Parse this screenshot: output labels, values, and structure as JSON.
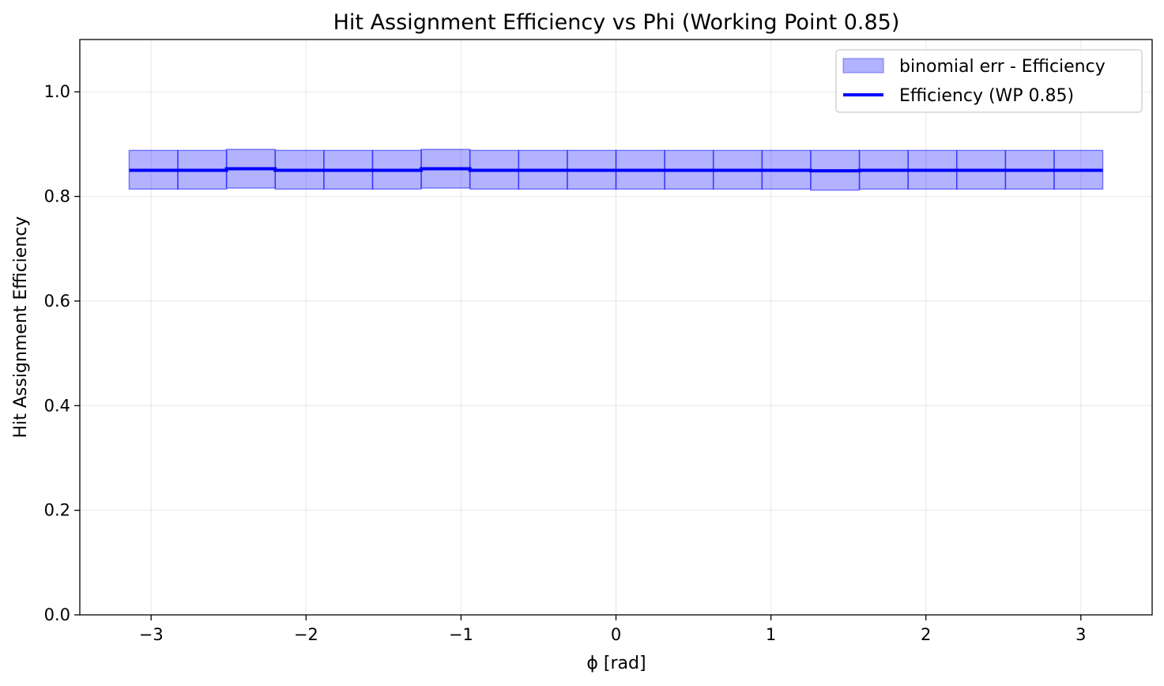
{
  "chart_data": {
    "type": "line",
    "title": "Hit Assignment Efficiency vs Phi (Working Point 0.85)",
    "xlabel": "ϕ [rad]",
    "ylabel": "Hit Assignment Efficiency",
    "xlim": [
      -3.46,
      3.46
    ],
    "ylim": [
      0.0,
      1.1
    ],
    "x_ticks": [
      {
        "value": -3,
        "label": "−3"
      },
      {
        "value": -2,
        "label": "−2"
      },
      {
        "value": -1,
        "label": "−1"
      },
      {
        "value": 0,
        "label": "0"
      },
      {
        "value": 1,
        "label": "1"
      },
      {
        "value": 2,
        "label": "2"
      },
      {
        "value": 3,
        "label": "3"
      }
    ],
    "y_ticks": [
      {
        "value": 0.0,
        "label": "0.0"
      },
      {
        "value": 0.2,
        "label": "0.2"
      },
      {
        "value": 0.4,
        "label": "0.4"
      },
      {
        "value": 0.6,
        "label": "0.6"
      },
      {
        "value": 0.8,
        "label": "0.8"
      },
      {
        "value": 1.0,
        "label": "1.0"
      }
    ],
    "grid": true,
    "legend_position": "top-right",
    "bin_edges": [
      -3.1416,
      -2.8274,
      -2.5133,
      -2.1991,
      -1.885,
      -1.5708,
      -1.2566,
      -0.9425,
      -0.6283,
      -0.3142,
      0.0,
      0.3142,
      0.6283,
      0.9425,
      1.2566,
      1.5708,
      1.885,
      2.1991,
      2.5133,
      2.8274,
      3.1416
    ],
    "series": [
      {
        "name": "Efficiency (WP 0.85)",
        "kind": "step",
        "color": "#0000ff",
        "values": [
          0.85,
          0.85,
          0.853,
          0.85,
          0.85,
          0.85,
          0.853,
          0.85,
          0.85,
          0.85,
          0.85,
          0.85,
          0.85,
          0.85,
          0.849,
          0.85,
          0.85,
          0.85,
          0.85,
          0.85
        ]
      },
      {
        "name": "binomial err - Efficiency",
        "kind": "band",
        "color": "#0000ff",
        "fill_opacity": 0.3,
        "lower": [
          0.814,
          0.814,
          0.816,
          0.814,
          0.814,
          0.814,
          0.816,
          0.814,
          0.814,
          0.814,
          0.814,
          0.814,
          0.814,
          0.814,
          0.812,
          0.814,
          0.814,
          0.814,
          0.814,
          0.814
        ],
        "upper": [
          0.888,
          0.888,
          0.89,
          0.888,
          0.888,
          0.888,
          0.89,
          0.888,
          0.888,
          0.888,
          0.888,
          0.888,
          0.888,
          0.888,
          0.888,
          0.888,
          0.888,
          0.888,
          0.888,
          0.888
        ]
      }
    ],
    "legend": [
      {
        "label": "binomial err - Efficiency",
        "kind": "band"
      },
      {
        "label": "Efficiency (WP 0.85)",
        "kind": "line"
      }
    ]
  }
}
